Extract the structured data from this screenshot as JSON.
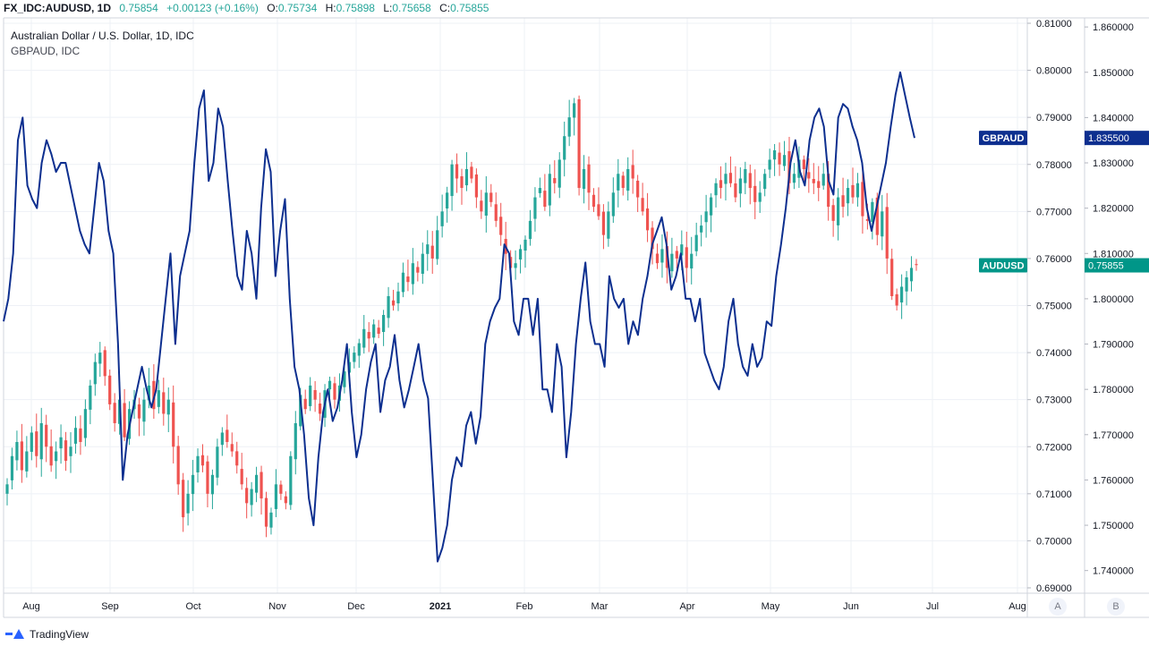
{
  "header": {
    "symbol": "FX_IDC:AUDUSD, 1D",
    "last": "0.75854",
    "change": "+0.00123 (+0.16%)",
    "open_label": "O:",
    "open": "0.75734",
    "high_label": "H:",
    "high": "0.75898",
    "low_label": "L:",
    "low": "0.75658",
    "close_label": "C:",
    "close": "0.75855"
  },
  "legend": {
    "main_title": "Australian Dollar / U.S. Dollar, 1D, IDC",
    "overlay_title": "GBPAUD, IDC"
  },
  "colors": {
    "up": "#26a69a",
    "down": "#ef5350",
    "overlay": "#0d2f8f",
    "grid": "#eef1f6",
    "axis_text": "#131722",
    "audusd_badge": "#009688",
    "gbpaud_badge": "#0d2f8f"
  },
  "chart_data": {
    "type": "candlestick+line",
    "x_months": [
      "Aug",
      "Sep",
      "Oct",
      "Nov",
      "Dec",
      "2021",
      "Feb",
      "Mar",
      "Apr",
      "May",
      "Jun",
      "Jul",
      "Aug"
    ],
    "main_series": {
      "name": "AUDUSD",
      "axis": "left-price-scale",
      "ylim": [
        0.69,
        0.81
      ],
      "ticks": [
        "0.81000",
        "0.80000",
        "0.79000",
        "0.78000",
        "0.77000",
        "0.76000",
        "0.75000",
        "0.74000",
        "0.73000",
        "0.72000",
        "0.71000",
        "0.70000",
        "0.69000"
      ],
      "closes": [
        0.712,
        0.718,
        0.721,
        0.715,
        0.719,
        0.723,
        0.718,
        0.725,
        0.72,
        0.716,
        0.719,
        0.722,
        0.717,
        0.72,
        0.724,
        0.721,
        0.728,
        0.733,
        0.738,
        0.74,
        0.735,
        0.729,
        0.725,
        0.73,
        0.722,
        0.728,
        0.73,
        0.726,
        0.73,
        0.733,
        0.728,
        0.732,
        0.727,
        0.73,
        0.72,
        0.712,
        0.705,
        0.71,
        0.714,
        0.718,
        0.716,
        0.71,
        0.714,
        0.72,
        0.723,
        0.721,
        0.719,
        0.716,
        0.712,
        0.708,
        0.711,
        0.714,
        0.709,
        0.703,
        0.706,
        0.712,
        0.71,
        0.708,
        0.718,
        0.725,
        0.731,
        0.728,
        0.733,
        0.73,
        0.727,
        0.732,
        0.734,
        0.73,
        0.733,
        0.736,
        0.738,
        0.74,
        0.742,
        0.745,
        0.743,
        0.746,
        0.744,
        0.748,
        0.752,
        0.75,
        0.753,
        0.757,
        0.755,
        0.759,
        0.757,
        0.761,
        0.763,
        0.76,
        0.766,
        0.77,
        0.774,
        0.78,
        0.777,
        0.775,
        0.779,
        0.777,
        0.773,
        0.77,
        0.774,
        0.772,
        0.768,
        0.765,
        0.761,
        0.758,
        0.759,
        0.762,
        0.764,
        0.768,
        0.773,
        0.775,
        0.771,
        0.778,
        0.776,
        0.781,
        0.786,
        0.79,
        0.793,
        0.775,
        0.779,
        0.774,
        0.771,
        0.769,
        0.765,
        0.77,
        0.774,
        0.778,
        0.775,
        0.779,
        0.777,
        0.773,
        0.77,
        0.766,
        0.762,
        0.759,
        0.762,
        0.758,
        0.761,
        0.76,
        0.763,
        0.758,
        0.761,
        0.765,
        0.767,
        0.77,
        0.773,
        0.776,
        0.775,
        0.778,
        0.776,
        0.773,
        0.777,
        0.779,
        0.775,
        0.772,
        0.774,
        0.778,
        0.781,
        0.783,
        0.78,
        0.782,
        0.776,
        0.778,
        0.781,
        0.779,
        0.777,
        0.776,
        0.775,
        0.778,
        0.771,
        0.768,
        0.773,
        0.771,
        0.775,
        0.773,
        0.776,
        0.769,
        0.768,
        0.772,
        0.765,
        0.77,
        0.76,
        0.752,
        0.75,
        0.754,
        0.756,
        0.758,
        0.7586
      ],
      "last_badge": "AUDUSD",
      "last_value": "0.75855",
      "last_value_data": 0.75855
    },
    "overlay_series": {
      "name": "GBPAUD",
      "axis": "right-scale",
      "ylim": [
        1.735,
        1.862
      ],
      "ticks": [
        "1.860000",
        "1.850000",
        "1.840000",
        "1.830000",
        "1.820000",
        "1.810000",
        "1.800000",
        "1.790000",
        "1.780000",
        "1.770000",
        "1.760000",
        "1.750000",
        "1.740000"
      ],
      "values": [
        1.795,
        1.8,
        1.81,
        1.835,
        1.84,
        1.825,
        1.822,
        1.82,
        1.83,
        1.835,
        1.832,
        1.828,
        1.83,
        1.83,
        1.825,
        1.82,
        1.815,
        1.812,
        1.81,
        1.82,
        1.83,
        1.826,
        1.815,
        1.81,
        1.79,
        1.76,
        1.77,
        1.775,
        1.78,
        1.785,
        1.78,
        1.776,
        1.78,
        1.79,
        1.8,
        1.81,
        1.79,
        1.805,
        1.81,
        1.815,
        1.83,
        1.842,
        1.846,
        1.826,
        1.83,
        1.842,
        1.838,
        1.826,
        1.815,
        1.805,
        1.802,
        1.815,
        1.81,
        1.8,
        1.82,
        1.833,
        1.828,
        1.805,
        1.815,
        1.822,
        1.8,
        1.785,
        1.78,
        1.77,
        1.756,
        1.75,
        1.765,
        1.775,
        1.78,
        1.773,
        1.776,
        1.782,
        1.79,
        1.775,
        1.765,
        1.77,
        1.78,
        1.786,
        1.79,
        1.775,
        1.782,
        1.785,
        1.792,
        1.782,
        1.776,
        1.78,
        1.785,
        1.79,
        1.782,
        1.778,
        1.76,
        1.742,
        1.745,
        1.75,
        1.76,
        1.765,
        1.763,
        1.772,
        1.775,
        1.768,
        1.774,
        1.79,
        1.795,
        1.798,
        1.8,
        1.812,
        1.81,
        1.795,
        1.792,
        1.8,
        1.8,
        1.792,
        1.8,
        1.78,
        1.78,
        1.775,
        1.79,
        1.785,
        1.765,
        1.775,
        1.79,
        1.8,
        1.808,
        1.795,
        1.79,
        1.79,
        1.785,
        1.805,
        1.8,
        1.798,
        1.8,
        1.79,
        1.795,
        1.792,
        1.8,
        1.805,
        1.812,
        1.815,
        1.818,
        1.812,
        1.802,
        1.805,
        1.81,
        1.8,
        1.8,
        1.795,
        1.8,
        1.788,
        1.785,
        1.782,
        1.78,
        1.785,
        1.795,
        1.8,
        1.79,
        1.785,
        1.783,
        1.79,
        1.785,
        1.787,
        1.795,
        1.794,
        1.805,
        1.812,
        1.82,
        1.83,
        1.835,
        1.828,
        1.825,
        1.835,
        1.84,
        1.842,
        1.838,
        1.826,
        1.823,
        1.84,
        1.843,
        1.842,
        1.838,
        1.835,
        1.83,
        1.82,
        1.815,
        1.82,
        1.825,
        1.83,
        1.838,
        1.845,
        1.85,
        1.845,
        1.84,
        1.8355
      ],
      "last_badge": "GBPAUD",
      "last_value": "1.835500",
      "last_value_data": 1.8355
    }
  },
  "scale_buttons": [
    "A",
    "B"
  ],
  "footer": {
    "brand": "TradingView"
  }
}
